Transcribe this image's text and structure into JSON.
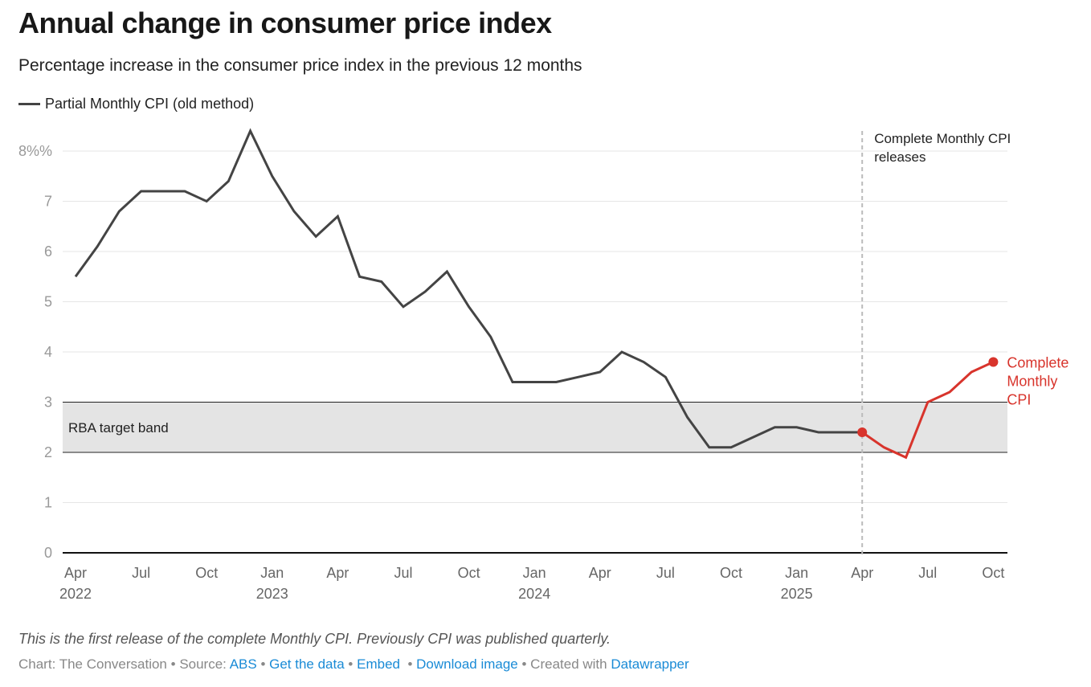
{
  "header": {
    "title": "Annual change in consumer price index",
    "subtitle": "Percentage increase in the consumer price index in the previous 12 months",
    "legend_label": "Partial Monthly CPI (old method)"
  },
  "footer": {
    "note": "This is the first release of the complete Monthly CPI. Previously CPI was published quarterly.",
    "chart_by": "Chart: The Conversation",
    "source_prefix": "Source: ",
    "source_link": "ABS",
    "get_data": "Get the data",
    "embed": "Embed",
    "download": "Download image",
    "created_prefix": "Created with ",
    "created_link": "Datawrapper",
    "separator": " • "
  },
  "colors": {
    "old_series": "#444444",
    "new_series": "#d8342c",
    "band": "#e4e4e4",
    "grid": "#e6e6e6",
    "link": "#1a8bd6"
  },
  "chart_data": {
    "type": "line",
    "title": "Annual change in consumer price index",
    "subtitle": "Percentage increase in the consumer price index in the previous 12 months",
    "xlabel": "",
    "ylabel": "",
    "ylim": [
      0,
      8.5
    ],
    "yticks": [
      0,
      1,
      2,
      3,
      4,
      5,
      6,
      7,
      8
    ],
    "ytick_labels": [
      "0",
      "1",
      "2",
      "3",
      "4",
      "5",
      "6",
      "7",
      "8%%"
    ],
    "x_start": "2022-04",
    "x_end": "2025-10",
    "xticks": [
      {
        "month": "2022-04",
        "label": "Apr",
        "year": "2022"
      },
      {
        "month": "2022-07",
        "label": "Jul",
        "year": ""
      },
      {
        "month": "2022-10",
        "label": "Oct",
        "year": ""
      },
      {
        "month": "2023-01",
        "label": "Jan",
        "year": "2023"
      },
      {
        "month": "2023-04",
        "label": "Apr",
        "year": ""
      },
      {
        "month": "2023-07",
        "label": "Jul",
        "year": ""
      },
      {
        "month": "2023-10",
        "label": "Oct",
        "year": ""
      },
      {
        "month": "2024-01",
        "label": "Jan",
        "year": "2024"
      },
      {
        "month": "2024-04",
        "label": "Apr",
        "year": ""
      },
      {
        "month": "2024-07",
        "label": "Jul",
        "year": ""
      },
      {
        "month": "2024-10",
        "label": "Oct",
        "year": ""
      },
      {
        "month": "2025-01",
        "label": "Jan",
        "year": "2025"
      },
      {
        "month": "2025-04",
        "label": "Apr",
        "year": ""
      },
      {
        "month": "2025-07",
        "label": "Jul",
        "year": ""
      },
      {
        "month": "2025-10",
        "label": "Oct",
        "year": ""
      }
    ],
    "grid": true,
    "legend": "top-left",
    "series": [
      {
        "name": "Partial Monthly CPI (old method)",
        "color": "#444444",
        "start": "2022-04",
        "values": [
          5.5,
          6.1,
          6.8,
          7.2,
          7.2,
          7.2,
          7.0,
          7.4,
          8.4,
          7.5,
          6.8,
          6.3,
          6.7,
          5.5,
          5.4,
          4.9,
          5.2,
          5.6,
          4.9,
          4.3,
          3.4,
          3.4,
          3.4,
          3.5,
          3.6,
          4.0,
          3.8,
          3.5,
          2.7,
          2.1,
          2.1,
          2.3,
          2.5,
          2.5,
          2.4,
          2.4,
          2.4
        ]
      },
      {
        "name": "Complete Monthly CPI",
        "color": "#d8342c",
        "start": "2025-04",
        "values": [
          2.4,
          2.1,
          1.9,
          3.0,
          3.2,
          3.6,
          3.8
        ],
        "label": [
          "Complete",
          "Monthly",
          "CPI"
        ]
      }
    ],
    "band": {
      "label": "RBA target band",
      "from": 2,
      "to": 3
    },
    "annotations": [
      {
        "at": "2025-04",
        "type": "vertical-dashed-line",
        "text": [
          "Complete Monthly CPI",
          "releases"
        ]
      }
    ]
  }
}
